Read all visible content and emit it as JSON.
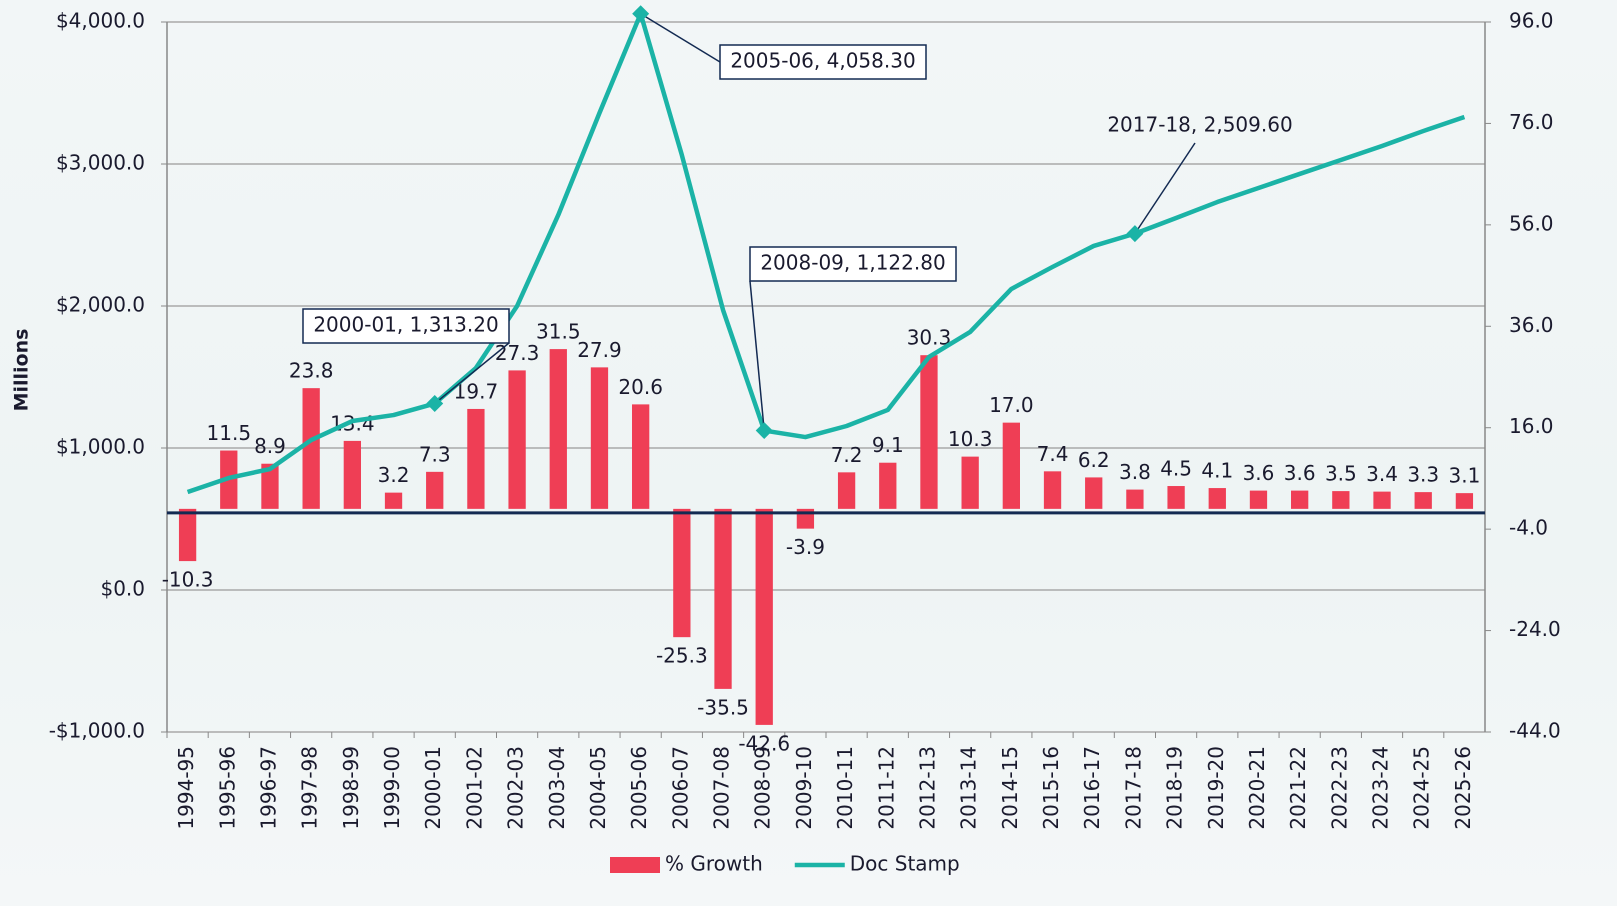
{
  "chart_data": {
    "type": "bar-line",
    "y_label": "Millions",
    "categories": [
      "1994-95",
      "1995-96",
      "1996-97",
      "1997-98",
      "1998-99",
      "1999-00",
      "2000-01",
      "2001-02",
      "2002-03",
      "2003-04",
      "2004-05",
      "2005-06",
      "2006-07",
      "2007-08",
      "2008-09",
      "2009-10",
      "2010-11",
      "2011-12",
      "2012-13",
      "2013-14",
      "2014-15",
      "2015-16",
      "2016-17",
      "2017-18",
      "2018-19",
      "2019-20",
      "2020-21",
      "2021-22",
      "2022-23",
      "2023-24",
      "2024-25",
      "2025-26"
    ],
    "series": [
      {
        "name": "% Growth",
        "type": "bar",
        "axis": "y2",
        "color": "#ef3e55",
        "values": [
          -10.3,
          11.5,
          8.9,
          23.8,
          13.4,
          3.2,
          7.3,
          19.7,
          27.3,
          31.5,
          27.9,
          20.6,
          -25.3,
          -35.5,
          -42.6,
          -3.9,
          7.2,
          9.1,
          30.3,
          10.3,
          17.0,
          7.4,
          6.2,
          3.8,
          4.5,
          4.1,
          3.6,
          3.6,
          3.5,
          3.4,
          3.3,
          3.1
        ],
        "value_labels": [
          "-10.3",
          "11.5",
          "8.9",
          "23.8",
          "13.4",
          "3.2",
          "7.3",
          "19.7",
          "27.3",
          "31.5",
          "27.9",
          "20.6",
          "-25.3",
          "-35.5",
          "-42.6",
          "-3.9",
          "7.2",
          "9.1",
          "30.3",
          "10.3",
          "17.0",
          "7.4",
          "6.2",
          "3.8",
          "4.5",
          "4.1",
          "3.6",
          "3.6",
          "3.5",
          "3.4",
          "3.3",
          "3.1"
        ]
      },
      {
        "name": "Doc Stamp",
        "type": "line",
        "axis": "y",
        "color": "#1bb3a6",
        "values": [
          690,
          789,
          852,
          1056,
          1190,
          1232,
          1313.2,
          1563,
          2000,
          2641,
          3359,
          4058.3,
          3063,
          1972,
          1122.8,
          1077,
          1155,
          1268,
          1641,
          1817,
          2120,
          2275,
          2423,
          2509.6,
          2620,
          2732,
          2831,
          2930,
          3028,
          3127,
          3232,
          3331
        ]
      }
    ],
    "ylim": [
      -1000,
      4000
    ],
    "yticks": [
      {
        "value": -1000,
        "label": "-$1,000.0"
      },
      {
        "value": 0,
        "label": "$0.0"
      },
      {
        "value": 1000,
        "label": "$1,000.0"
      },
      {
        "value": 2000,
        "label": "$2,000.0"
      },
      {
        "value": 3000,
        "label": "$3,000.0"
      },
      {
        "value": 4000,
        "label": "$4,000.0"
      }
    ],
    "y2lim": [
      -44,
      96
    ],
    "y2ticks": [
      {
        "value": -44,
        "label": "-44.0"
      },
      {
        "value": -24,
        "label": "-24.0"
      },
      {
        "value": -4,
        "label": "-4.0"
      },
      {
        "value": 16,
        "label": "16.0"
      },
      {
        "value": 36,
        "label": "36.0"
      },
      {
        "value": 56,
        "label": "56.0"
      },
      {
        "value": 76,
        "label": "76.0"
      },
      {
        "value": 96,
        "label": "96.0"
      }
    ],
    "grid": true,
    "annotations": [
      "2005-06, 4,058.30",
      "2000-01, 1,313.20",
      "2008-09, 1,122.80",
      "2017-18, 2,509.60"
    ]
  }
}
